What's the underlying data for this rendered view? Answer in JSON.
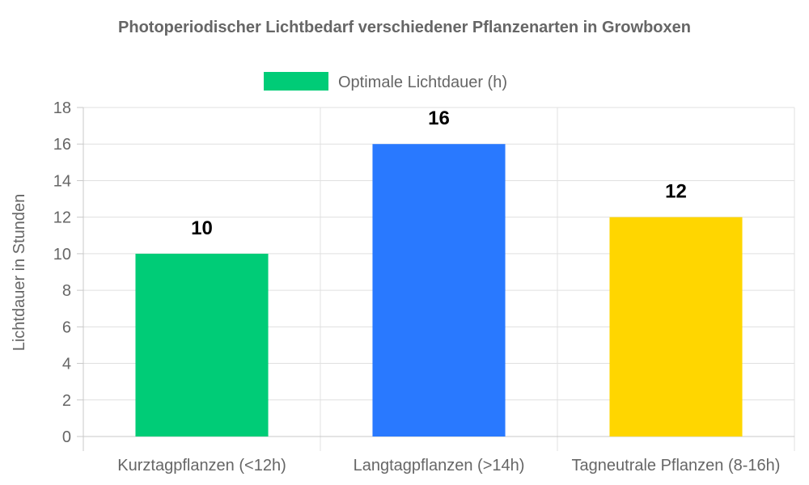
{
  "chart_data": {
    "type": "bar",
    "title": "Photoperiodischer Lichtbedarf verschiedener Pflanzenarten in Growboxen",
    "xlabel": "",
    "ylabel": "Lichtdauer in Stunden",
    "categories": [
      "Kurztagpflanzen (<12h)",
      "Langtagpflanzen (>14h)",
      "Tagneutrale Pflanzen (8-16h)"
    ],
    "series": [
      {
        "name": "Optimale Lichtdauer (h)",
        "values": [
          10,
          16,
          12
        ],
        "colors": [
          "#00cc77",
          "#2979ff",
          "#ffd600"
        ]
      }
    ],
    "data_labels": [
      "10",
      "16",
      "12"
    ],
    "y_ticks": [
      0,
      2,
      4,
      6,
      8,
      10,
      12,
      14,
      16,
      18
    ],
    "ylim": [
      0,
      18
    ],
    "grid": true,
    "legend_position": "top",
    "legend_color": "#00cc77"
  }
}
